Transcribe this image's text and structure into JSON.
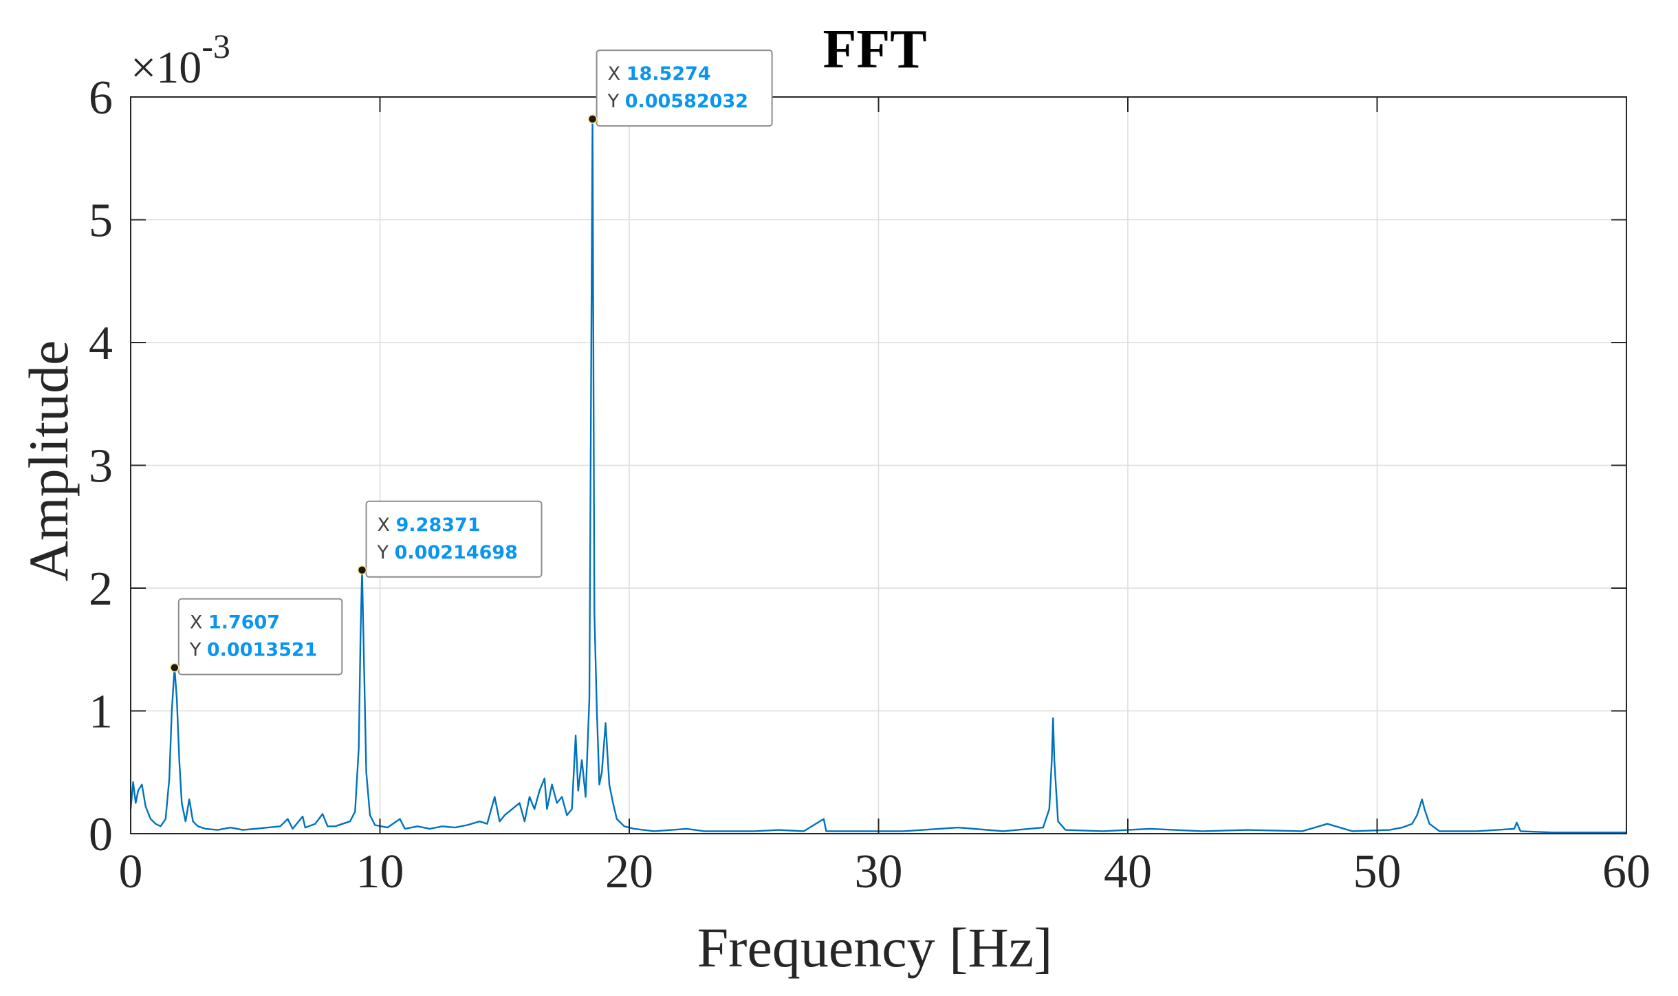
{
  "chart_data": {
    "type": "line",
    "title": "FFT",
    "xlabel": "Frequency [Hz]",
    "ylabel": "Amplitude",
    "y_exponent_label": "×10",
    "y_exponent_power": "-3",
    "xlim": [
      0,
      60
    ],
    "ylim": [
      0,
      0.006
    ],
    "x_ticks": [
      0,
      10,
      20,
      30,
      40,
      50,
      60
    ],
    "x_tick_labels": [
      "0",
      "10",
      "20",
      "30",
      "40",
      "50",
      "60"
    ],
    "y_ticks": [
      0,
      0.001,
      0.002,
      0.003,
      0.004,
      0.005,
      0.006
    ],
    "y_tick_labels": [
      "0",
      "1",
      "2",
      "3",
      "4",
      "5",
      "6"
    ],
    "grid": true,
    "line_color": "#0072BD",
    "datatip_value_color": "#0A95F0",
    "series": [
      {
        "name": "Amplitude",
        "points": [
          [
            0.0,
            0.0002
          ],
          [
            0.1,
            0.00042
          ],
          [
            0.2,
            0.00025
          ],
          [
            0.3,
            0.00035
          ],
          [
            0.45,
            0.0004
          ],
          [
            0.6,
            0.00022
          ],
          [
            0.8,
            0.00012
          ],
          [
            1.0,
            8e-05
          ],
          [
            1.2,
            6e-05
          ],
          [
            1.4,
            0.00012
          ],
          [
            1.55,
            0.00045
          ],
          [
            1.65,
            0.001
          ],
          [
            1.7607,
            0.0013521
          ],
          [
            1.85,
            0.0011
          ],
          [
            1.95,
            0.0006
          ],
          [
            2.05,
            0.00025
          ],
          [
            2.2,
            0.0001
          ],
          [
            2.35,
            0.00028
          ],
          [
            2.5,
            0.0001
          ],
          [
            2.7,
            6e-05
          ],
          [
            3.0,
            4e-05
          ],
          [
            3.5,
            3e-05
          ],
          [
            4.0,
            5e-05
          ],
          [
            4.5,
            3e-05
          ],
          [
            5.0,
            4e-05
          ],
          [
            5.5,
            5e-05
          ],
          [
            6.0,
            6e-05
          ],
          [
            6.3,
            0.00012
          ],
          [
            6.5,
            4e-05
          ],
          [
            6.9,
            0.00014
          ],
          [
            7.0,
            5e-05
          ],
          [
            7.4,
            8e-05
          ],
          [
            7.7,
            0.00016
          ],
          [
            7.9,
            6e-05
          ],
          [
            8.2,
            6e-05
          ],
          [
            8.5,
            8e-05
          ],
          [
            8.8,
            0.0001
          ],
          [
            9.0,
            0.00018
          ],
          [
            9.15,
            0.0007
          ],
          [
            9.22,
            0.0016
          ],
          [
            9.28371,
            0.00214698
          ],
          [
            9.35,
            0.0015
          ],
          [
            9.45,
            0.0005
          ],
          [
            9.6,
            0.00015
          ],
          [
            9.8,
            7e-05
          ],
          [
            10.3,
            5e-05
          ],
          [
            10.8,
            0.00012
          ],
          [
            11.0,
            4e-05
          ],
          [
            11.5,
            6e-05
          ],
          [
            12.0,
            4e-05
          ],
          [
            12.5,
            6e-05
          ],
          [
            13.0,
            5e-05
          ],
          [
            13.5,
            7e-05
          ],
          [
            14.0,
            0.0001
          ],
          [
            14.3,
            8e-05
          ],
          [
            14.6,
            0.0003
          ],
          [
            14.8,
            0.0001
          ],
          [
            15.0,
            0.00015
          ],
          [
            15.3,
            0.0002
          ],
          [
            15.6,
            0.00025
          ],
          [
            15.8,
            0.0001
          ],
          [
            16.0,
            0.0003
          ],
          [
            16.2,
            0.0002
          ],
          [
            16.4,
            0.00035
          ],
          [
            16.6,
            0.00045
          ],
          [
            16.7,
            0.0002
          ],
          [
            16.9,
            0.0004
          ],
          [
            17.1,
            0.00025
          ],
          [
            17.3,
            0.0003
          ],
          [
            17.5,
            0.00015
          ],
          [
            17.7,
            0.0002
          ],
          [
            17.85,
            0.0008
          ],
          [
            17.95,
            0.00035
          ],
          [
            18.1,
            0.0006
          ],
          [
            18.25,
            0.0003
          ],
          [
            18.4,
            0.0011
          ],
          [
            18.5274,
            0.00582032
          ],
          [
            18.6,
            0.0018
          ],
          [
            18.7,
            0.001
          ],
          [
            18.8,
            0.0004
          ],
          [
            18.9,
            0.0005
          ],
          [
            19.05,
            0.0009
          ],
          [
            19.2,
            0.0004
          ],
          [
            19.35,
            0.00025
          ],
          [
            19.5,
            0.00012
          ],
          [
            19.8,
            6e-05
          ],
          [
            20.2,
            4e-05
          ],
          [
            21.0,
            2e-05
          ],
          [
            22.3,
            4e-05
          ],
          [
            23.0,
            2e-05
          ],
          [
            25.0,
            2e-05
          ],
          [
            26.0,
            3e-05
          ],
          [
            27.0,
            2e-05
          ],
          [
            27.8,
            0.00012
          ],
          [
            27.9,
            2e-05
          ],
          [
            29.0,
            2e-05
          ],
          [
            31.0,
            2e-05
          ],
          [
            33.2,
            5e-05
          ],
          [
            35.0,
            2e-05
          ],
          [
            36.6,
            5e-05
          ],
          [
            36.85,
            0.0002
          ],
          [
            36.95,
            0.0006
          ],
          [
            37.0,
            0.00094
          ],
          [
            37.05,
            0.0006
          ],
          [
            37.2,
            0.0001
          ],
          [
            37.5,
            3e-05
          ],
          [
            39.0,
            2e-05
          ],
          [
            40.9,
            4e-05
          ],
          [
            43.0,
            2e-05
          ],
          [
            44.8,
            3e-05
          ],
          [
            47.0,
            2e-05
          ],
          [
            48.0,
            8e-05
          ],
          [
            49.0,
            2e-05
          ],
          [
            50.5,
            3e-05
          ],
          [
            51.0,
            5e-05
          ],
          [
            51.4,
            8e-05
          ],
          [
            51.6,
            0.00015
          ],
          [
            51.8,
            0.00028
          ],
          [
            51.9,
            0.0002
          ],
          [
            52.1,
            8e-05
          ],
          [
            52.5,
            2e-05
          ],
          [
            54.0,
            2e-05
          ],
          [
            55.5,
            4e-05
          ],
          [
            55.6,
            9e-05
          ],
          [
            55.75,
            2e-05
          ],
          [
            57.0,
            1e-05
          ],
          [
            60.0,
            1e-05
          ]
        ]
      }
    ],
    "datatips": [
      {
        "x": 1.7607,
        "y": 0.0013521,
        "x_label": "X",
        "x_text": "1.7607",
        "y_label": "Y",
        "y_text": "0.0013521"
      },
      {
        "x": 9.28371,
        "y": 0.00214698,
        "x_label": "X",
        "x_text": "9.28371",
        "y_label": "Y",
        "y_text": "0.00214698"
      },
      {
        "x": 18.5274,
        "y": 0.00582032,
        "x_label": "X",
        "x_text": "18.5274",
        "y_label": "Y",
        "y_text": "0.00582032"
      }
    ]
  }
}
